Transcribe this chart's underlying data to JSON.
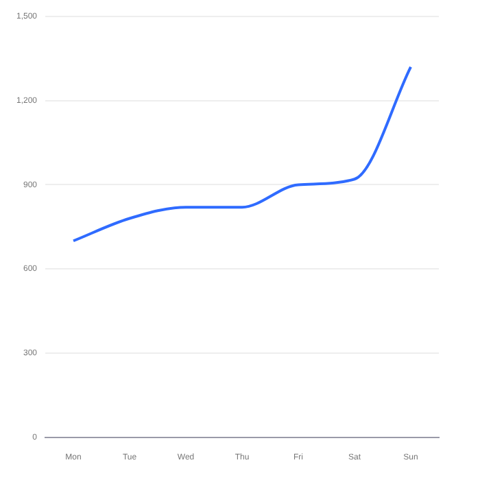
{
  "chart_data": {
    "type": "line",
    "categories": [
      "Mon",
      "Tue",
      "Wed",
      "Thu",
      "Fri",
      "Sat",
      "Sun"
    ],
    "series": [
      {
        "color": "#2f6bff",
        "values": [
          700,
          780,
          820,
          820,
          900,
          920,
          1320
        ]
      }
    ],
    "ylim": [
      0,
      1500
    ],
    "yticks": [
      {
        "value": 0,
        "label": "0"
      },
      {
        "value": 300,
        "label": "300"
      },
      {
        "value": 600,
        "label": "600"
      },
      {
        "value": 900,
        "label": "900"
      },
      {
        "value": 1200,
        "label": "1,200"
      },
      {
        "value": 1500,
        "label": "1,500"
      }
    ],
    "grid": "y",
    "legend": false,
    "marker": "none",
    "line_style": "solid"
  }
}
